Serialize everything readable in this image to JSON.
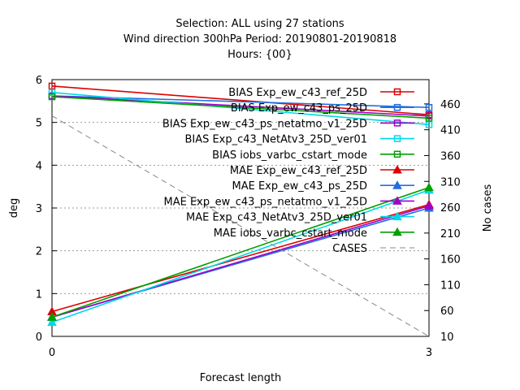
{
  "chart_data": {
    "type": "line",
    "title_lines": [
      "Selection: ALL using    27 stations",
      "Wind direction 300hPa   Period: 20190801-20190818",
      "Hours: {00}"
    ],
    "xlabel": "Forecast length",
    "ylabel": "deg",
    "y2label": "No cases",
    "x": [
      0,
      3
    ],
    "x_ticks": [
      "0",
      "3"
    ],
    "ylim": [
      0,
      6
    ],
    "y_ticks": [
      "0",
      "1",
      "2",
      "3",
      "4",
      "5",
      "6"
    ],
    "y2lim": [
      10,
      507
    ],
    "y2_ticks": [
      "10",
      "60",
      "110",
      "160",
      "210",
      "260",
      "310",
      "360",
      "410",
      "460"
    ],
    "grid": true,
    "legend_position": "top-right",
    "series": [
      {
        "name": "BIAS Exp_ew_c43_ref_25D",
        "color": "#dd0000",
        "marker": "open-square",
        "axis": "left",
        "values": [
          5.85,
          5.18
        ]
      },
      {
        "name": "BIAS Exp_ew_c43_ps_25D",
        "color": "#1f6fe0",
        "marker": "open-square",
        "axis": "left",
        "values": [
          5.62,
          5.35
        ]
      },
      {
        "name": "BIAS Exp_ew_c43_ps_netatmo_v1_25D",
        "color": "#a000cc",
        "marker": "open-square",
        "axis": "left",
        "values": [
          5.62,
          5.15
        ]
      },
      {
        "name": "BIAS Exp_c43_NetAtv3_25D_ver01",
        "color": "#00d8e8",
        "marker": "open-square",
        "axis": "left",
        "values": [
          5.7,
          4.95
        ]
      },
      {
        "name": "BIAS iobs_varbc_cstart_mode",
        "color": "#00a000",
        "marker": "open-square",
        "axis": "left",
        "values": [
          5.6,
          5.1
        ]
      },
      {
        "name": "MAE Exp_ew_c43_ref_25D",
        "color": "#dd0000",
        "marker": "filled-triangle",
        "axis": "left",
        "values": [
          0.58,
          3.08
        ]
      },
      {
        "name": "MAE Exp_ew_c43_ps_25D",
        "color": "#1f6fe0",
        "marker": "filled-triangle",
        "axis": "left",
        "values": [
          0.45,
          3.0
        ]
      },
      {
        "name": "MAE Exp_ew_c43_ps_netatmo_v1_25D",
        "color": "#a000cc",
        "marker": "filled-triangle",
        "axis": "left",
        "values": [
          0.45,
          3.05
        ]
      },
      {
        "name": "MAE Exp_c43_NetAtv3_25D_ver01",
        "color": "#00d8e8",
        "marker": "filled-triangle",
        "axis": "left",
        "values": [
          0.33,
          3.42
        ]
      },
      {
        "name": "MAE iobs_varbc_cstart_mode",
        "color": "#00a000",
        "marker": "filled-triangle",
        "axis": "left",
        "values": [
          0.45,
          3.48
        ]
      },
      {
        "name": "CASES",
        "color": "#888888",
        "marker": "none",
        "dashed": true,
        "axis": "right",
        "values": [
          437,
          10
        ]
      }
    ]
  }
}
